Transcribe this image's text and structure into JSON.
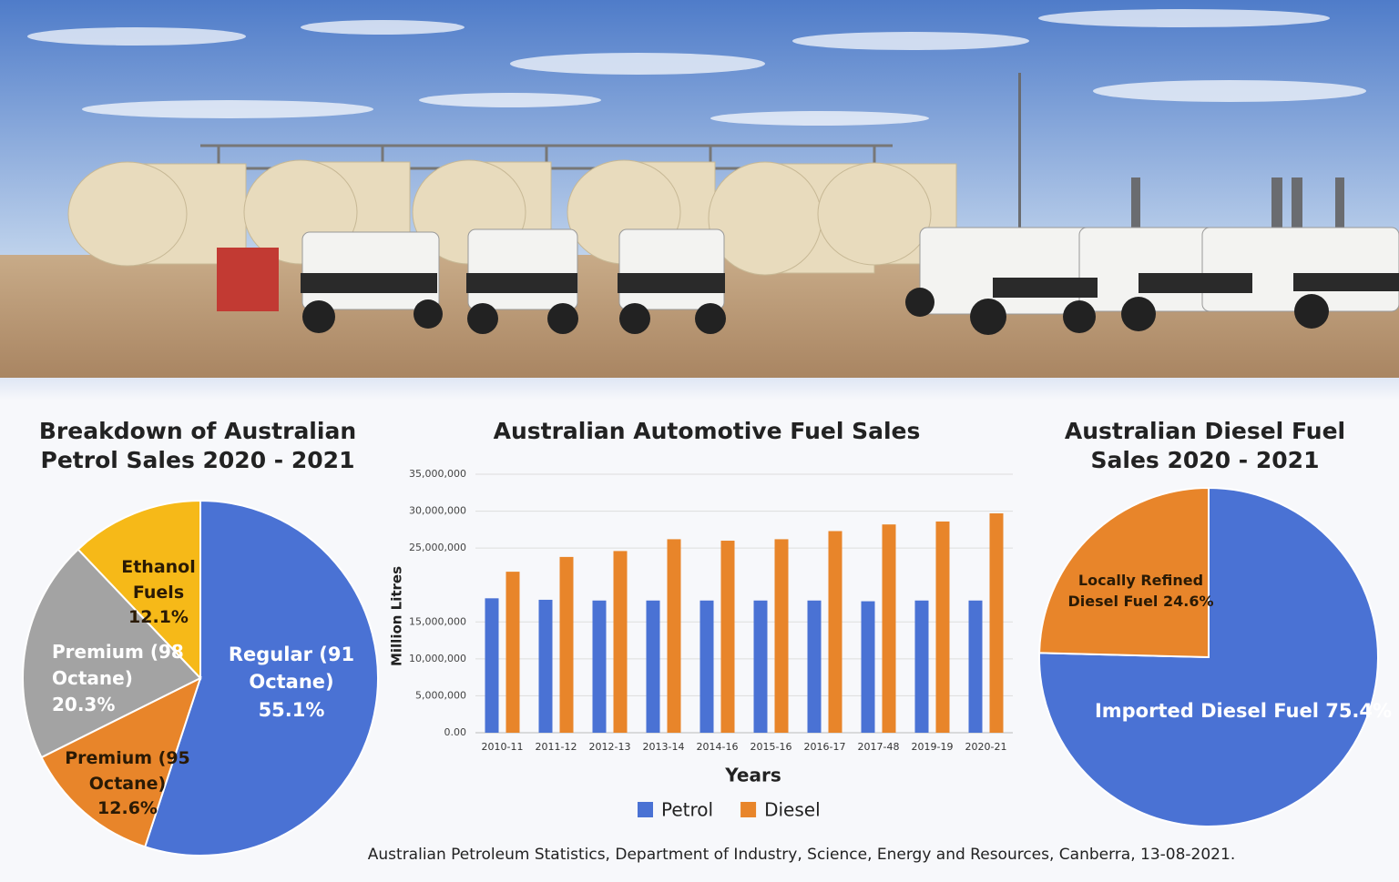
{
  "chart_data": [
    {
      "type": "pie",
      "title": "Breakdown of Australian Petrol Sales 2020 - 2021",
      "categories": [
        "Regular (91 Octane)",
        "Premium (95 Octane)",
        "Premium (98 Octane)",
        "Ethanol Fuels"
      ],
      "values": [
        55.1,
        12.6,
        20.3,
        12.1
      ],
      "value_labels": [
        "55.1%",
        "12.6%",
        "20.3%",
        "12.1%"
      ],
      "colors": [
        "#4a72d4",
        "#e8852a",
        "#a3a3a3",
        "#f6b918"
      ]
    },
    {
      "type": "bar",
      "title": "Australian Automotive Fuel Sales",
      "x_label": "Years",
      "y_label": "Million Litres",
      "categories": [
        "2010-11",
        "2011-12",
        "2012-13",
        "2013-14",
        "2014-16",
        "2015-16",
        "2016-17",
        "2017-48",
        "2019-19",
        "2020-21"
      ],
      "series": [
        {
          "name": "Petrol",
          "color": "#4a72d4",
          "values": [
            18200000,
            18000000,
            17900000,
            17900000,
            17900000,
            17900000,
            17900000,
            17800000,
            17900000,
            17900000
          ]
        },
        {
          "name": "Diesel",
          "color": "#e8852a",
          "values": [
            21800000,
            23800000,
            24600000,
            26200000,
            26000000,
            26200000,
            27300000,
            28200000,
            28600000,
            29700000
          ]
        }
      ],
      "ylim": [
        0,
        35000000
      ],
      "yticks": [
        {
          "value": 0,
          "label": "0.00"
        },
        {
          "value": 5000000,
          "label": "5,000,000"
        },
        {
          "value": 10000000,
          "label": "10,000,000"
        },
        {
          "value": 15000000,
          "label": "15,000,000"
        },
        {
          "value": 25000000,
          "label": "25,000,000"
        },
        {
          "value": 30000000,
          "label": "30,000,000"
        },
        {
          "value": 35000000,
          "label": "35,000,000"
        }
      ],
      "grid": true,
      "legend": "bottom"
    },
    {
      "type": "pie",
      "title": "Australian Diesel Fuel Sales 2020 - 2021",
      "categories": [
        "Imported Diesel Fuel",
        "Locally Refined Diesel Fuel"
      ],
      "values": [
        75.4,
        24.6
      ],
      "value_labels": [
        "75.4%",
        "24.6%"
      ],
      "colors": [
        "#4a72d4",
        "#e8852a"
      ]
    }
  ],
  "source": "Australian Petroleum Statistics, Department of Industry, Science, Energy and Resources, Canberra, 13-08-2021."
}
